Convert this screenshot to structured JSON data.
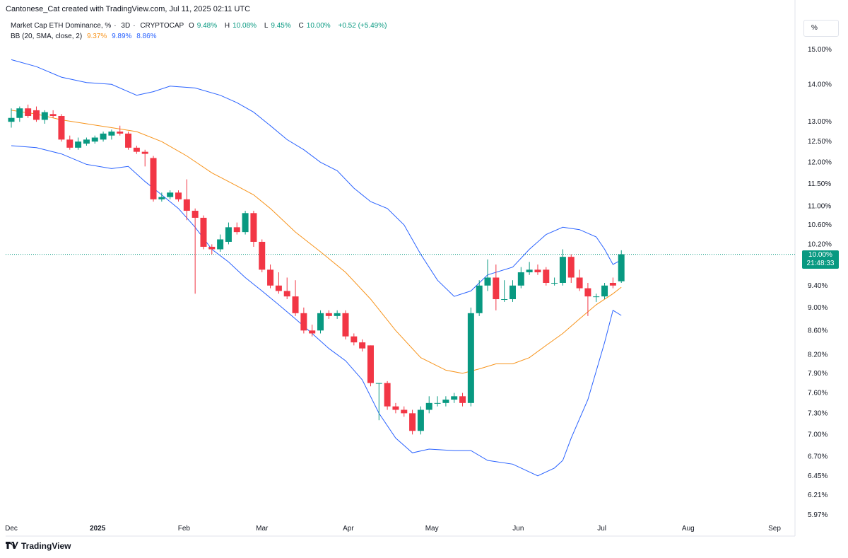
{
  "header": {
    "attribution": "Cantonese_Cat created with TradingView.com, Jul 11, 2025 02:11 UTC"
  },
  "legend": {
    "symbol": "Market Cap ETH Dominance, %",
    "interval": "3D",
    "source": "CRYPTOCAP",
    "o_label": "O",
    "o_value": "9.48%",
    "h_label": "H",
    "h_value": "10.08%",
    "l_label": "L",
    "l_value": "9.45%",
    "c_label": "C",
    "c_value": "10.00%",
    "change": "+0.52 (+5.49%)",
    "bb_name": "BB (20, SMA, close, 2)",
    "bb_basis": "9.37%",
    "bb_upper": "9.89%",
    "bb_lower": "8.86%"
  },
  "scale_button": "%",
  "last_price": {
    "value": "10.00%",
    "countdown": "21:48:33"
  },
  "footer": {
    "brand": "TradingView"
  },
  "colors": {
    "up": "#089981",
    "down": "#f23645",
    "basis": "#f7931a",
    "band": "#2962ff",
    "grid": "#e0e3eb",
    "text": "#131722"
  },
  "chart_data": {
    "type": "candlestick",
    "yscale": "log",
    "ylim": [
      5.95,
      15.4
    ],
    "yticks": [
      "15.00%",
      "14.00%",
      "13.00%",
      "12.50%",
      "12.00%",
      "11.50%",
      "11.00%",
      "10.60%",
      "10.20%",
      "9.80%",
      "9.40%",
      "9.00%",
      "8.60%",
      "8.20%",
      "7.90%",
      "7.60%",
      "7.30%",
      "7.00%",
      "6.70%",
      "6.45%",
      "6.21%",
      "5.97%"
    ],
    "ytick_values": [
      15.0,
      14.0,
      13.0,
      12.5,
      12.0,
      11.5,
      11.0,
      10.6,
      10.2,
      9.8,
      9.4,
      9.0,
      8.6,
      8.2,
      7.9,
      7.6,
      7.3,
      7.0,
      6.7,
      6.45,
      6.21,
      5.97
    ],
    "xticks": [
      {
        "label": "Dec",
        "date": "2024-12-01"
      },
      {
        "label": "2025",
        "date": "2025-01-01"
      },
      {
        "label": "Feb",
        "date": "2025-02-01"
      },
      {
        "label": "Mar",
        "date": "2025-03-01"
      },
      {
        "label": "Apr",
        "date": "2025-04-01"
      },
      {
        "label": "May",
        "date": "2025-05-01"
      },
      {
        "label": "Jun",
        "date": "2025-06-01"
      },
      {
        "label": "Jul",
        "date": "2025-07-01"
      },
      {
        "label": "Aug",
        "date": "2025-08-01"
      },
      {
        "label": "Sep",
        "date": "2025-09-01"
      }
    ],
    "candles": [
      {
        "date": "2024-12-01",
        "o": 13.0,
        "h": 13.35,
        "l": 12.85,
        "c": 13.1
      },
      {
        "date": "2024-12-04",
        "o": 13.1,
        "h": 13.4,
        "l": 13.0,
        "c": 13.35
      },
      {
        "date": "2024-12-07",
        "o": 13.35,
        "h": 13.45,
        "l": 13.1,
        "c": 13.15
      },
      {
        "date": "2024-12-10",
        "o": 13.3,
        "h": 13.4,
        "l": 13.0,
        "c": 13.05
      },
      {
        "date": "2024-12-13",
        "o": 13.05,
        "h": 13.3,
        "l": 12.95,
        "c": 13.25
      },
      {
        "date": "2024-12-16",
        "o": 13.2,
        "h": 13.3,
        "l": 13.1,
        "c": 13.15
      },
      {
        "date": "2024-12-19",
        "o": 13.15,
        "h": 13.2,
        "l": 12.5,
        "c": 12.55
      },
      {
        "date": "2024-12-22",
        "o": 12.55,
        "h": 12.65,
        "l": 12.3,
        "c": 12.35
      },
      {
        "date": "2024-12-25",
        "o": 12.35,
        "h": 12.6,
        "l": 12.3,
        "c": 12.5
      },
      {
        "date": "2024-12-28",
        "o": 12.45,
        "h": 12.6,
        "l": 12.4,
        "c": 12.55
      },
      {
        "date": "2024-12-31",
        "o": 12.5,
        "h": 12.65,
        "l": 12.45,
        "c": 12.6
      },
      {
        "date": "2025-01-03",
        "o": 12.55,
        "h": 12.75,
        "l": 12.5,
        "c": 12.7
      },
      {
        "date": "2025-01-06",
        "o": 12.65,
        "h": 12.8,
        "l": 12.55,
        "c": 12.75
      },
      {
        "date": "2025-01-09",
        "o": 12.75,
        "h": 12.9,
        "l": 12.65,
        "c": 12.7
      },
      {
        "date": "2025-01-12",
        "o": 12.7,
        "h": 12.75,
        "l": 12.3,
        "c": 12.35
      },
      {
        "date": "2025-01-15",
        "o": 12.35,
        "h": 12.4,
        "l": 12.2,
        "c": 12.25
      },
      {
        "date": "2025-01-18",
        "o": 12.25,
        "h": 12.3,
        "l": 11.9,
        "c": 12.2
      },
      {
        "date": "2025-01-21",
        "o": 12.1,
        "h": 12.15,
        "l": 11.1,
        "c": 11.15
      },
      {
        "date": "2025-01-24",
        "o": 11.15,
        "h": 11.3,
        "l": 11.1,
        "c": 11.2
      },
      {
        "date": "2025-01-27",
        "o": 11.2,
        "h": 11.35,
        "l": 11.15,
        "c": 11.3
      },
      {
        "date": "2025-01-30",
        "o": 11.3,
        "h": 11.35,
        "l": 11.1,
        "c": 11.15
      },
      {
        "date": "2025-02-02",
        "o": 11.15,
        "h": 11.6,
        "l": 10.7,
        "c": 10.9
      },
      {
        "date": "2025-02-05",
        "o": 10.9,
        "h": 10.95,
        "l": 9.25,
        "c": 10.75
      },
      {
        "date": "2025-02-08",
        "o": 10.75,
        "h": 10.8,
        "l": 10.1,
        "c": 10.15
      },
      {
        "date": "2025-02-11",
        "o": 10.15,
        "h": 10.2,
        "l": 10.0,
        "c": 10.1
      },
      {
        "date": "2025-02-14",
        "o": 10.1,
        "h": 10.4,
        "l": 10.05,
        "c": 10.3
      },
      {
        "date": "2025-02-17",
        "o": 10.25,
        "h": 10.65,
        "l": 10.2,
        "c": 10.55
      },
      {
        "date": "2025-02-20",
        "o": 10.55,
        "h": 10.65,
        "l": 10.4,
        "c": 10.45
      },
      {
        "date": "2025-02-23",
        "o": 10.45,
        "h": 10.9,
        "l": 10.4,
        "c": 10.85
      },
      {
        "date": "2025-02-26",
        "o": 10.85,
        "h": 10.9,
        "l": 10.15,
        "c": 10.25
      },
      {
        "date": "2025-03-01",
        "o": 10.25,
        "h": 10.3,
        "l": 9.65,
        "c": 9.7
      },
      {
        "date": "2025-03-04",
        "o": 9.7,
        "h": 9.8,
        "l": 9.35,
        "c": 9.4
      },
      {
        "date": "2025-03-07",
        "o": 9.4,
        "h": 9.65,
        "l": 9.25,
        "c": 9.3
      },
      {
        "date": "2025-03-10",
        "o": 9.3,
        "h": 9.55,
        "l": 9.15,
        "c": 9.2
      },
      {
        "date": "2025-03-13",
        "o": 9.2,
        "h": 9.5,
        "l": 8.85,
        "c": 8.9
      },
      {
        "date": "2025-03-16",
        "o": 8.9,
        "h": 9.0,
        "l": 8.55,
        "c": 8.6
      },
      {
        "date": "2025-03-19",
        "o": 8.6,
        "h": 8.7,
        "l": 8.5,
        "c": 8.55
      },
      {
        "date": "2025-03-22",
        "o": 8.6,
        "h": 8.95,
        "l": 8.55,
        "c": 8.9
      },
      {
        "date": "2025-03-25",
        "o": 8.9,
        "h": 8.95,
        "l": 8.8,
        "c": 8.85
      },
      {
        "date": "2025-03-28",
        "o": 8.85,
        "h": 8.95,
        "l": 8.8,
        "c": 8.9
      },
      {
        "date": "2025-03-31",
        "o": 8.9,
        "h": 8.95,
        "l": 8.45,
        "c": 8.5
      },
      {
        "date": "2025-04-03",
        "o": 8.5,
        "h": 8.55,
        "l": 8.35,
        "c": 8.4
      },
      {
        "date": "2025-04-06",
        "o": 8.4,
        "h": 8.45,
        "l": 8.25,
        "c": 8.3
      },
      {
        "date": "2025-04-09",
        "o": 8.35,
        "h": 8.35,
        "l": 7.7,
        "c": 7.75
      },
      {
        "date": "2025-04-12",
        "o": 7.75,
        "h": 7.75,
        "l": 7.2,
        "c": 7.75
      },
      {
        "date": "2025-04-15",
        "o": 7.75,
        "h": 7.78,
        "l": 7.35,
        "c": 7.4
      },
      {
        "date": "2025-04-18",
        "o": 7.4,
        "h": 7.45,
        "l": 7.3,
        "c": 7.35
      },
      {
        "date": "2025-04-21",
        "o": 7.35,
        "h": 7.4,
        "l": 7.25,
        "c": 7.3
      },
      {
        "date": "2025-04-24",
        "o": 7.3,
        "h": 7.35,
        "l": 7.0,
        "c": 7.05
      },
      {
        "date": "2025-04-27",
        "o": 7.05,
        "h": 7.4,
        "l": 7.0,
        "c": 7.35
      },
      {
        "date": "2025-04-30",
        "o": 7.35,
        "h": 7.55,
        "l": 7.3,
        "c": 7.45
      },
      {
        "date": "2025-05-03",
        "o": 7.45,
        "h": 7.55,
        "l": 7.4,
        "c": 7.45
      },
      {
        "date": "2025-05-06",
        "o": 7.45,
        "h": 7.55,
        "l": 7.4,
        "c": 7.5
      },
      {
        "date": "2025-05-09",
        "o": 7.5,
        "h": 7.6,
        "l": 7.45,
        "c": 7.55
      },
      {
        "date": "2025-05-12",
        "o": 7.55,
        "h": 7.6,
        "l": 7.4,
        "c": 7.45
      },
      {
        "date": "2025-05-15",
        "o": 7.45,
        "h": 9.0,
        "l": 7.4,
        "c": 8.9
      },
      {
        "date": "2025-05-18",
        "o": 8.9,
        "h": 9.5,
        "l": 8.85,
        "c": 9.4
      },
      {
        "date": "2025-05-21",
        "o": 9.4,
        "h": 9.9,
        "l": 9.3,
        "c": 9.55
      },
      {
        "date": "2025-05-24",
        "o": 9.55,
        "h": 9.8,
        "l": 8.95,
        "c": 9.15
      },
      {
        "date": "2025-05-27",
        "o": 9.15,
        "h": 9.5,
        "l": 9.1,
        "c": 9.15
      },
      {
        "date": "2025-05-30",
        "o": 9.15,
        "h": 9.5,
        "l": 9.1,
        "c": 9.4
      },
      {
        "date": "2025-06-02",
        "o": 9.4,
        "h": 9.75,
        "l": 9.35,
        "c": 9.65
      },
      {
        "date": "2025-06-05",
        "o": 9.65,
        "h": 9.85,
        "l": 9.6,
        "c": 9.7
      },
      {
        "date": "2025-06-08",
        "o": 9.7,
        "h": 9.8,
        "l": 9.6,
        "c": 9.65
      },
      {
        "date": "2025-06-11",
        "o": 9.7,
        "h": 9.75,
        "l": 9.4,
        "c": 9.45
      },
      {
        "date": "2025-06-14",
        "o": 9.45,
        "h": 9.55,
        "l": 9.4,
        "c": 9.45
      },
      {
        "date": "2025-06-17",
        "o": 9.45,
        "h": 10.1,
        "l": 9.4,
        "c": 9.95
      },
      {
        "date": "2025-06-20",
        "o": 9.95,
        "h": 10.0,
        "l": 9.45,
        "c": 9.55
      },
      {
        "date": "2025-06-23",
        "o": 9.55,
        "h": 9.7,
        "l": 9.3,
        "c": 9.35
      },
      {
        "date": "2025-06-26",
        "o": 9.35,
        "h": 9.45,
        "l": 8.85,
        "c": 9.2
      },
      {
        "date": "2025-06-29",
        "o": 9.2,
        "h": 9.25,
        "l": 9.1,
        "c": 9.2
      },
      {
        "date": "2025-07-02",
        "o": 9.2,
        "h": 9.45,
        "l": 9.15,
        "c": 9.4
      },
      {
        "date": "2025-07-05",
        "o": 9.45,
        "h": 9.55,
        "l": 9.35,
        "c": 9.4
      },
      {
        "date": "2025-07-08",
        "o": 9.48,
        "h": 10.08,
        "l": 9.45,
        "c": 10.0
      }
    ],
    "bb_upper": [
      {
        "date": "2024-12-01",
        "v": 14.7
      },
      {
        "date": "2024-12-10",
        "v": 14.5
      },
      {
        "date": "2024-12-19",
        "v": 14.2
      },
      {
        "date": "2024-12-28",
        "v": 14.05
      },
      {
        "date": "2025-01-06",
        "v": 14.0
      },
      {
        "date": "2025-01-12",
        "v": 13.8
      },
      {
        "date": "2025-01-15",
        "v": 13.7
      },
      {
        "date": "2025-01-21",
        "v": 13.8
      },
      {
        "date": "2025-01-27",
        "v": 13.95
      },
      {
        "date": "2025-02-05",
        "v": 13.9
      },
      {
        "date": "2025-02-14",
        "v": 13.7
      },
      {
        "date": "2025-02-20",
        "v": 13.5
      },
      {
        "date": "2025-02-26",
        "v": 13.25
      },
      {
        "date": "2025-03-04",
        "v": 12.9
      },
      {
        "date": "2025-03-10",
        "v": 12.55
      },
      {
        "date": "2025-03-16",
        "v": 12.3
      },
      {
        "date": "2025-03-22",
        "v": 12.0
      },
      {
        "date": "2025-03-28",
        "v": 11.8
      },
      {
        "date": "2025-04-03",
        "v": 11.4
      },
      {
        "date": "2025-04-09",
        "v": 11.1
      },
      {
        "date": "2025-04-15",
        "v": 10.95
      },
      {
        "date": "2025-04-21",
        "v": 10.6
      },
      {
        "date": "2025-04-27",
        "v": 10.0
      },
      {
        "date": "2025-05-03",
        "v": 9.5
      },
      {
        "date": "2025-05-09",
        "v": 9.2
      },
      {
        "date": "2025-05-15",
        "v": 9.3
      },
      {
        "date": "2025-05-21",
        "v": 9.6
      },
      {
        "date": "2025-05-30",
        "v": 9.75
      },
      {
        "date": "2025-06-05",
        "v": 10.1
      },
      {
        "date": "2025-06-11",
        "v": 10.4
      },
      {
        "date": "2025-06-17",
        "v": 10.55
      },
      {
        "date": "2025-06-23",
        "v": 10.5
      },
      {
        "date": "2025-06-29",
        "v": 10.35
      },
      {
        "date": "2025-07-02",
        "v": 10.1
      },
      {
        "date": "2025-07-05",
        "v": 9.8
      },
      {
        "date": "2025-07-08",
        "v": 9.89
      }
    ],
    "bb_basis": [
      {
        "date": "2024-12-01",
        "v": 13.3
      },
      {
        "date": "2024-12-10",
        "v": 13.2
      },
      {
        "date": "2024-12-19",
        "v": 13.05
      },
      {
        "date": "2024-12-28",
        "v": 12.95
      },
      {
        "date": "2025-01-06",
        "v": 12.85
      },
      {
        "date": "2025-01-15",
        "v": 12.75
      },
      {
        "date": "2025-01-24",
        "v": 12.5
      },
      {
        "date": "2025-02-02",
        "v": 12.15
      },
      {
        "date": "2025-02-11",
        "v": 11.75
      },
      {
        "date": "2025-02-20",
        "v": 11.45
      },
      {
        "date": "2025-02-26",
        "v": 11.25
      },
      {
        "date": "2025-03-04",
        "v": 10.95
      },
      {
        "date": "2025-03-13",
        "v": 10.45
      },
      {
        "date": "2025-03-22",
        "v": 10.05
      },
      {
        "date": "2025-03-31",
        "v": 9.65
      },
      {
        "date": "2025-04-09",
        "v": 9.15
      },
      {
        "date": "2025-04-18",
        "v": 8.6
      },
      {
        "date": "2025-04-27",
        "v": 8.15
      },
      {
        "date": "2025-05-06",
        "v": 7.95
      },
      {
        "date": "2025-05-12",
        "v": 7.9
      },
      {
        "date": "2025-05-18",
        "v": 7.97
      },
      {
        "date": "2025-05-24",
        "v": 8.05
      },
      {
        "date": "2025-05-30",
        "v": 8.05
      },
      {
        "date": "2025-06-05",
        "v": 8.15
      },
      {
        "date": "2025-06-11",
        "v": 8.35
      },
      {
        "date": "2025-06-17",
        "v": 8.55
      },
      {
        "date": "2025-06-23",
        "v": 8.8
      },
      {
        "date": "2025-06-29",
        "v": 9.05
      },
      {
        "date": "2025-07-05",
        "v": 9.25
      },
      {
        "date": "2025-07-08",
        "v": 9.37
      }
    ],
    "bb_lower": [
      {
        "date": "2024-12-01",
        "v": 12.4
      },
      {
        "date": "2024-12-10",
        "v": 12.35
      },
      {
        "date": "2024-12-19",
        "v": 12.2
      },
      {
        "date": "2024-12-28",
        "v": 11.95
      },
      {
        "date": "2025-01-06",
        "v": 11.85
      },
      {
        "date": "2025-01-12",
        "v": 11.9
      },
      {
        "date": "2025-01-18",
        "v": 11.55
      },
      {
        "date": "2025-01-24",
        "v": 11.25
      },
      {
        "date": "2025-01-30",
        "v": 10.95
      },
      {
        "date": "2025-02-05",
        "v": 10.55
      },
      {
        "date": "2025-02-11",
        "v": 10.1
      },
      {
        "date": "2025-02-17",
        "v": 9.85
      },
      {
        "date": "2025-02-23",
        "v": 9.55
      },
      {
        "date": "2025-03-01",
        "v": 9.3
      },
      {
        "date": "2025-03-07",
        "v": 9.05
      },
      {
        "date": "2025-03-13",
        "v": 8.8
      },
      {
        "date": "2025-03-19",
        "v": 8.55
      },
      {
        "date": "2025-03-25",
        "v": 8.3
      },
      {
        "date": "2025-03-31",
        "v": 8.1
      },
      {
        "date": "2025-04-06",
        "v": 7.8
      },
      {
        "date": "2025-04-12",
        "v": 7.3
      },
      {
        "date": "2025-04-18",
        "v": 6.95
      },
      {
        "date": "2025-04-24",
        "v": 6.75
      },
      {
        "date": "2025-04-30",
        "v": 6.8
      },
      {
        "date": "2025-05-09",
        "v": 6.78
      },
      {
        "date": "2025-05-15",
        "v": 6.78
      },
      {
        "date": "2025-05-21",
        "v": 6.65
      },
      {
        "date": "2025-05-30",
        "v": 6.6
      },
      {
        "date": "2025-06-05",
        "v": 6.5
      },
      {
        "date": "2025-06-08",
        "v": 6.45
      },
      {
        "date": "2025-06-14",
        "v": 6.55
      },
      {
        "date": "2025-06-17",
        "v": 6.65
      },
      {
        "date": "2025-06-20",
        "v": 6.95
      },
      {
        "date": "2025-06-26",
        "v": 7.5
      },
      {
        "date": "2025-07-02",
        "v": 8.4
      },
      {
        "date": "2025-07-05",
        "v": 8.95
      },
      {
        "date": "2025-07-08",
        "v": 8.86
      }
    ],
    "last_value": 10.0
  }
}
